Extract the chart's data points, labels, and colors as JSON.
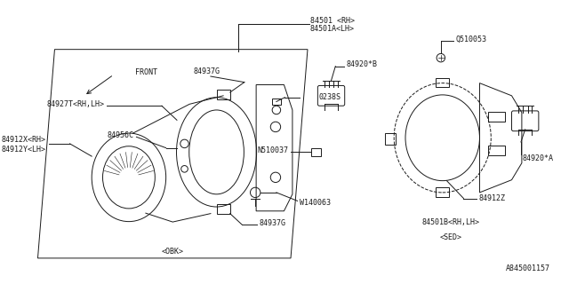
{
  "bg_color": "#ffffff",
  "line_color": "#1a1a1a",
  "text_color": "#1a1a1a",
  "fig_width": 6.4,
  "fig_height": 3.2,
  "dpi": 100,
  "labels": {
    "part_num_top": "84501 <RH>",
    "part_num_top2": "84501A<LH>",
    "front_label": "FRONT",
    "84937G_top": "84937G",
    "0238S": "0238S",
    "84920B": "84920*B",
    "Q510053": "Q510053",
    "84927T": "84927T<RH,LH>",
    "84956C": "84956C",
    "84912X": "84912X<RH>",
    "84912Y": "84912Y<LH>",
    "N510037": "N510037",
    "W140063": "W140063",
    "84937G_bot": "84937G",
    "84920A": "84920*A",
    "84912Z": "84912Z",
    "84501B": "84501B<RH,LH>",
    "OBK": "<OBK>",
    "SED": "<SED>",
    "part_code": "A845001157"
  }
}
